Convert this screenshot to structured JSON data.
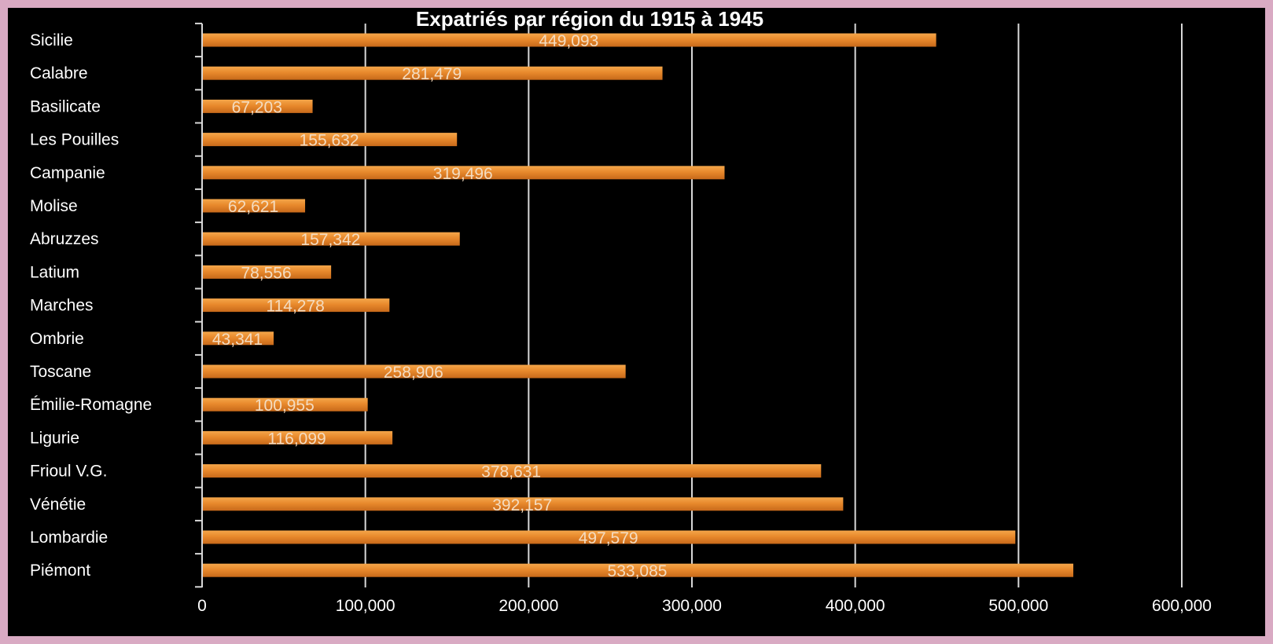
{
  "chart_data": {
    "type": "bar",
    "orientation": "horizontal",
    "title": "Expatriés par région du 1915 à 1945",
    "categories": [
      "Sicilie",
      "Calabre",
      "Basilicate",
      "Les Pouilles",
      "Campanie",
      "Molise",
      "Abruzzes",
      "Latium",
      "Marches",
      "Ombrie",
      "Toscane",
      "Émilie-Romagne",
      "Ligurie",
      "Frioul V.G.",
      "Vénétie",
      "Lombardie",
      "Piémont"
    ],
    "values": [
      449093,
      281479,
      67203,
      155632,
      319496,
      62621,
      157342,
      78556,
      114278,
      43341,
      258906,
      100955,
      116099,
      378631,
      392157,
      497579,
      533085
    ],
    "value_labels": [
      "449,093",
      "281,479",
      "67,203",
      "155,632",
      "319,496",
      "62,621",
      "157,342",
      "78,556",
      "114,278",
      "43,341",
      "258,906",
      "100,955",
      "116,099",
      "378,631",
      "392,157",
      "497,579",
      "533,085"
    ],
    "xlim": [
      0,
      600000
    ],
    "xticks": [
      0,
      100000,
      200000,
      300000,
      400000,
      500000,
      600000
    ],
    "xtick_labels": [
      "0",
      "100,000",
      "200,000",
      "300,000",
      "400,000",
      "500,000",
      "600,000"
    ],
    "grid": true,
    "legend": "none",
    "colors": {
      "bar": "#e8892c",
      "bar_light": "#f4a64a",
      "bar_dark": "#c7691a",
      "background": "#000000",
      "frame": "#d9aac3",
      "gridline": "#d8d8d8",
      "text": "#ffffff",
      "value_text": "#f4dcc0"
    }
  }
}
